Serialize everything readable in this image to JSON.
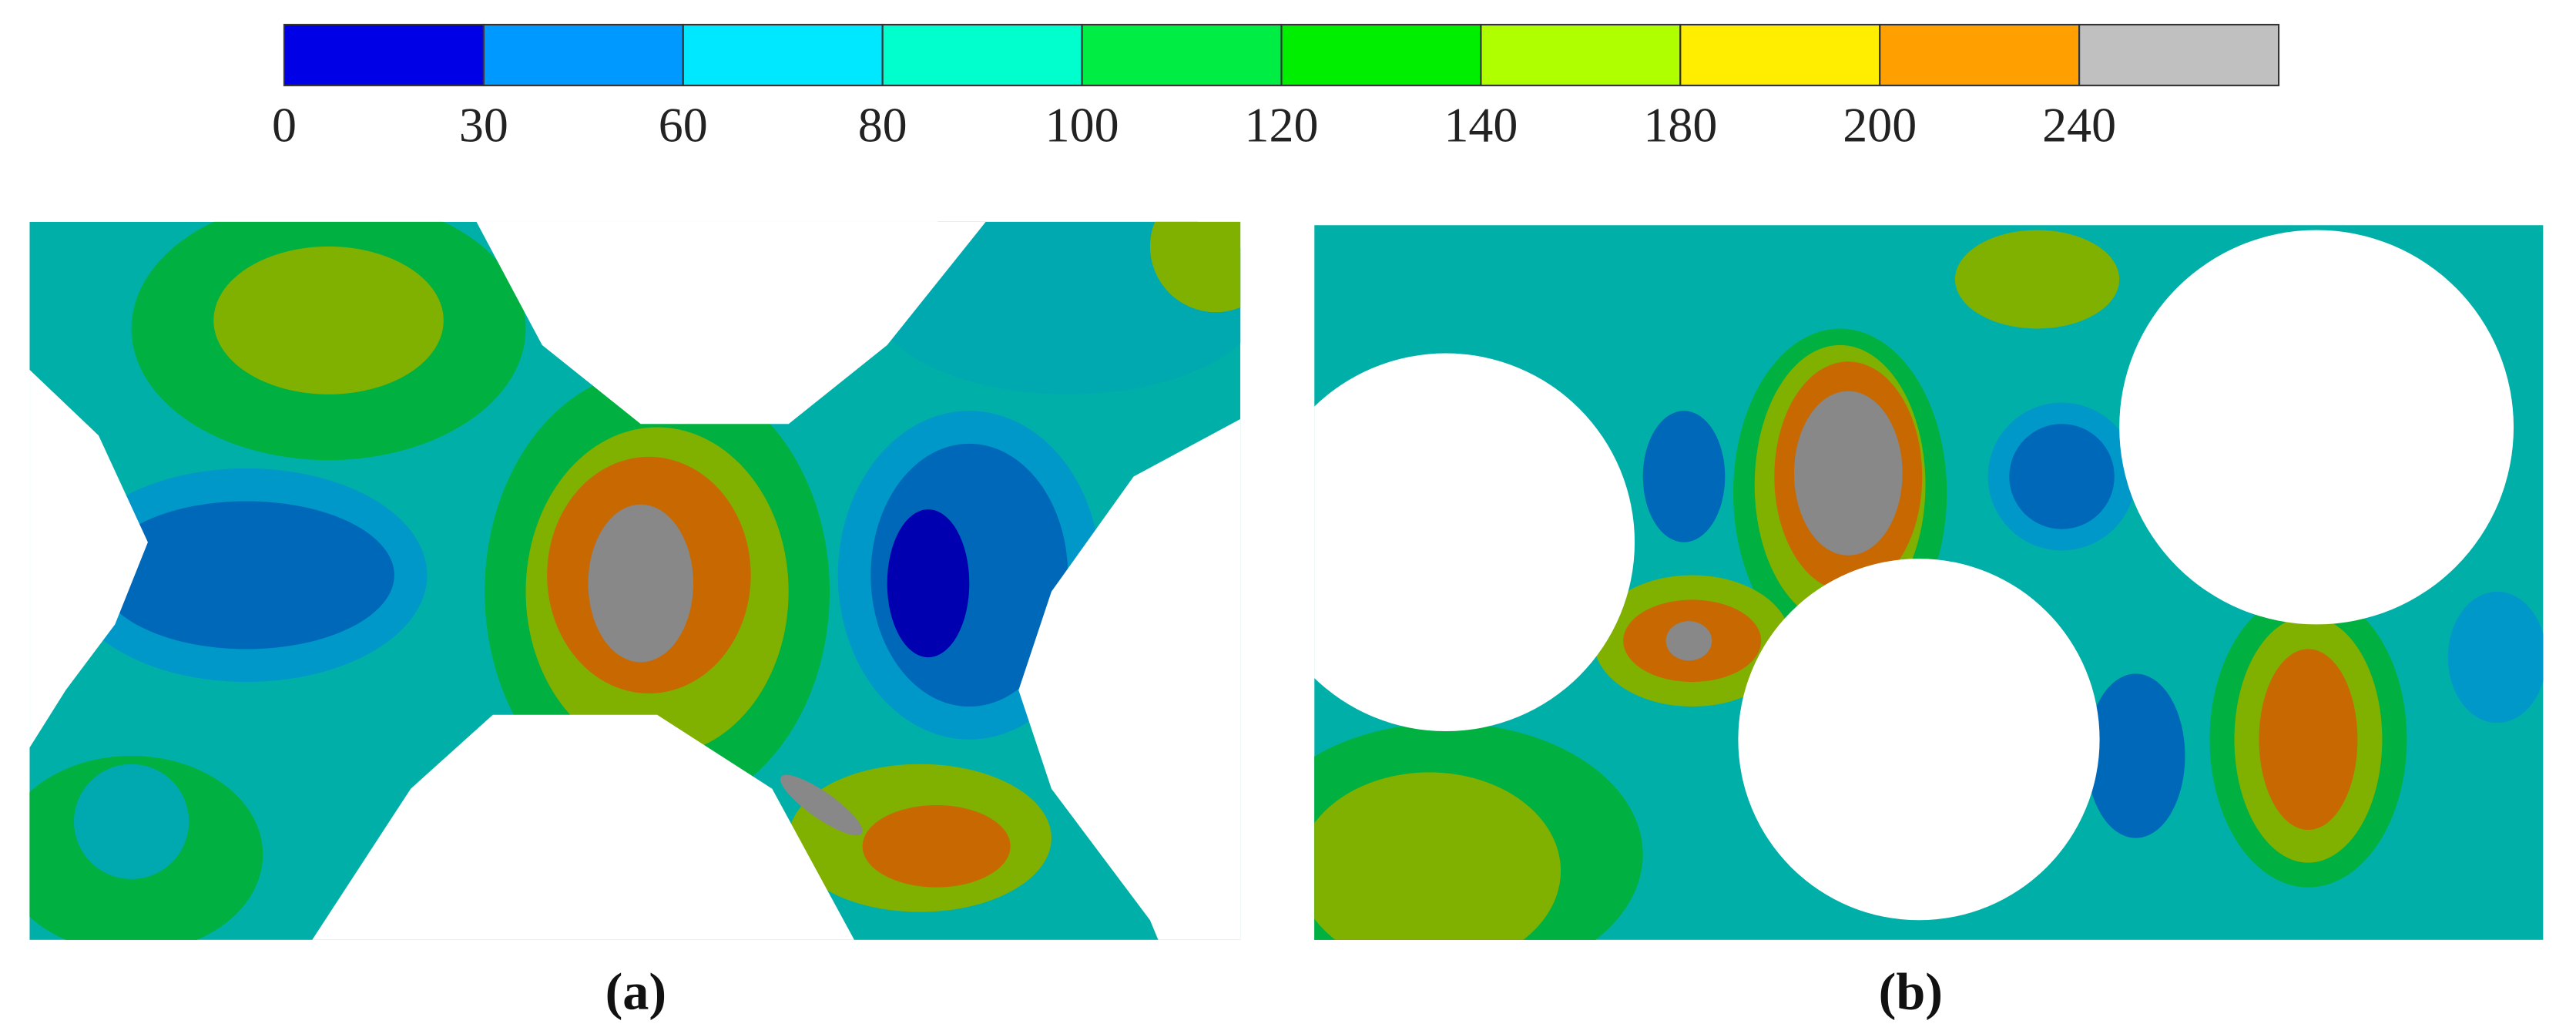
{
  "colorbar": {
    "ticks": [
      0,
      30,
      60,
      80,
      100,
      120,
      140,
      180,
      200,
      240
    ],
    "colors": [
      "#0000e6",
      "#0099ff",
      "#00e8ff",
      "#00ffcc",
      "#00ee44",
      "#00ee00",
      "#b0ff00",
      "#ffee00",
      "#ffa000",
      "#c0c0c0"
    ]
  },
  "panels": [
    {
      "caption": "(a)"
    },
    {
      "caption": "(b)"
    }
  ]
}
